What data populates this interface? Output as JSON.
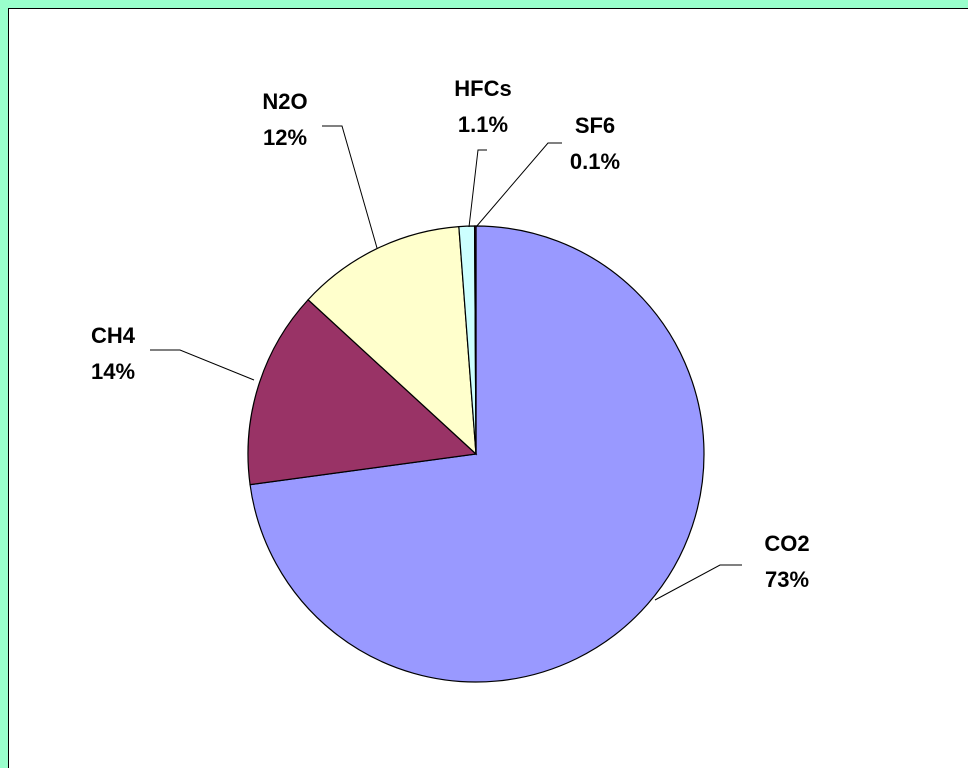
{
  "chart_data": {
    "type": "pie",
    "categories": [
      "CO2",
      "CH4",
      "N2O",
      "HFCs",
      "SF6"
    ],
    "values": [
      73,
      14,
      12,
      1.1,
      0.1
    ],
    "value_labels": [
      "73%",
      "14%",
      "12%",
      "1.1%",
      "0.1%"
    ],
    "colors": [
      "#9999ff",
      "#993366",
      "#ffffcc",
      "#ccffff",
      "#660066"
    ]
  }
}
